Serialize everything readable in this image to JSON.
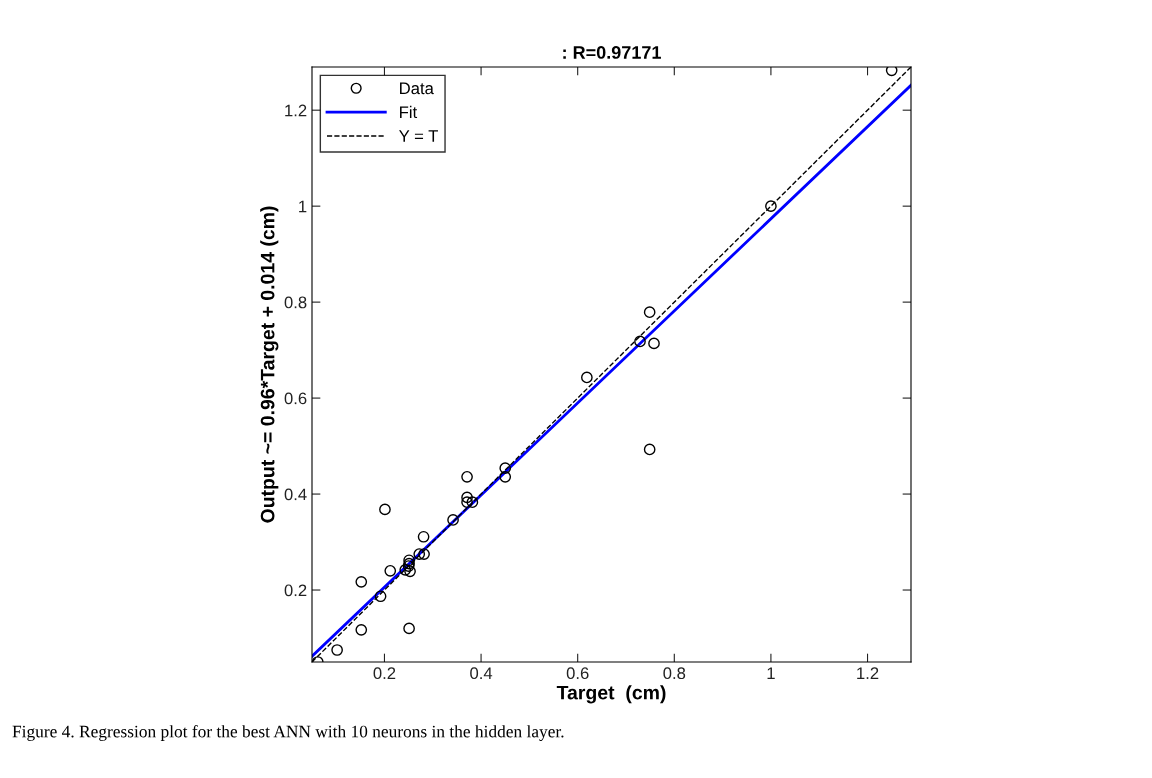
{
  "chart_data": {
    "type": "scatter",
    "title": ": R=0.97171",
    "xlabel": "Target  (cm)",
    "ylabel": "Output ~= 0.96*Target + 0.014 (cm)",
    "xlim": [
      0.05,
      1.29
    ],
    "ylim": [
      0.05,
      1.29
    ],
    "xticks": [
      0.2,
      0.4,
      0.6,
      0.8,
      1,
      1.2
    ],
    "yticks": [
      0.2,
      0.4,
      0.6,
      0.8,
      1,
      1.2
    ],
    "grid": false,
    "legend": "top left",
    "series": [
      {
        "name": "Data",
        "marker": "circle",
        "color": "#000000",
        "x": [
          0.062,
          0.102,
          0.152,
          0.152,
          0.192,
          0.201,
          0.212,
          0.243,
          0.251,
          0.251,
          0.25,
          0.253,
          0.251,
          0.272,
          0.282,
          0.281,
          0.342,
          0.371,
          0.371,
          0.371,
          0.382,
          0.45,
          0.45,
          0.619,
          0.729,
          0.749,
          0.758,
          0.749,
          1.0,
          1.25
        ],
        "values": [
          0.05,
          0.075,
          0.217,
          0.117,
          0.187,
          0.368,
          0.24,
          0.242,
          0.262,
          0.255,
          0.25,
          0.239,
          0.12,
          0.275,
          0.275,
          0.311,
          0.346,
          0.436,
          0.393,
          0.383,
          0.383,
          0.454,
          0.436,
          0.643,
          0.718,
          0.779,
          0.714,
          0.493,
          1.0,
          1.283
        ]
      },
      {
        "name": "Fit",
        "type": "line",
        "line_style": "solid",
        "color": "#0000ff",
        "x": [
          0.05,
          1.29
        ],
        "values": [
          0.062,
          1.252
        ]
      },
      {
        "name": "Y = T",
        "type": "line",
        "line_style": "dashed",
        "color": "#000000",
        "x": [
          0.05,
          1.29
        ],
        "values": [
          0.05,
          1.29
        ]
      }
    ],
    "annotations": [
      "Figure 4. Regression plot for the best ANN with 10 neurons in the hidden layer."
    ]
  }
}
